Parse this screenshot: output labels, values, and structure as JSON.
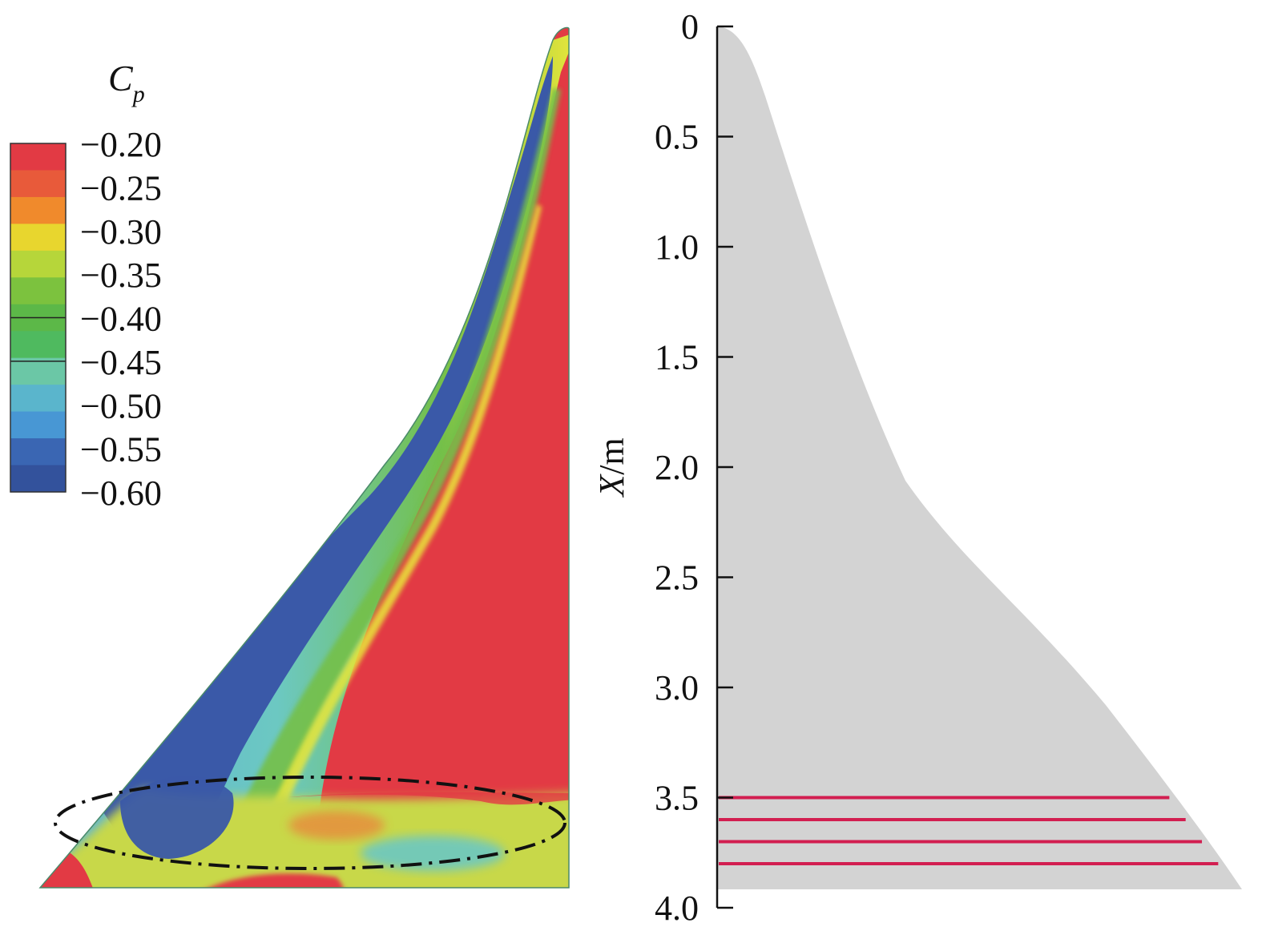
{
  "colorbar": {
    "title_main": "C",
    "title_sub": "p",
    "labels": [
      "−0.20",
      "−0.25",
      "−0.30",
      "−0.35",
      "−0.40",
      "−0.45",
      "−0.50",
      "−0.55",
      "−0.60"
    ],
    "colors": [
      "#e23a44",
      "#e85a3a",
      "#f08a2c",
      "#e8d62e",
      "#b6d63a",
      "#7cc23e",
      "#5cb848",
      "#4fba5f",
      "#6bc7a6",
      "#5ab5cc",
      "#4897d4",
      "#3a66b3",
      "#33529c"
    ],
    "contour_line_values": [
      "−0.40",
      "−0.45"
    ]
  },
  "section_view": {
    "axis_label_main": "X",
    "axis_label_unit": "/m",
    "ticks": [
      "0",
      "0.5",
      "1.0",
      "1.5",
      "2.0",
      "2.5",
      "3.0",
      "3.5",
      "4.0"
    ],
    "tick_values": [
      0,
      0.5,
      1.0,
      1.5,
      2.0,
      2.5,
      3.0,
      3.5,
      4.0
    ],
    "cut_positions": [
      3.5,
      3.6,
      3.7,
      3.8
    ],
    "cut_line_color": "#d21e50",
    "planform_fill": "#d3d3d3"
  },
  "contour_view": {
    "palette": {
      "red": "#e23a44",
      "blue": "#3a59a8",
      "lightblue": "#5cb0d6",
      "cyan": "#6cc8c2",
      "green": "#74c04a",
      "yellow": "#e8e63a",
      "yellowgreen": "#c8d848",
      "orange": "#ec7f3a"
    },
    "ellipse_style": "dash-dot"
  }
}
